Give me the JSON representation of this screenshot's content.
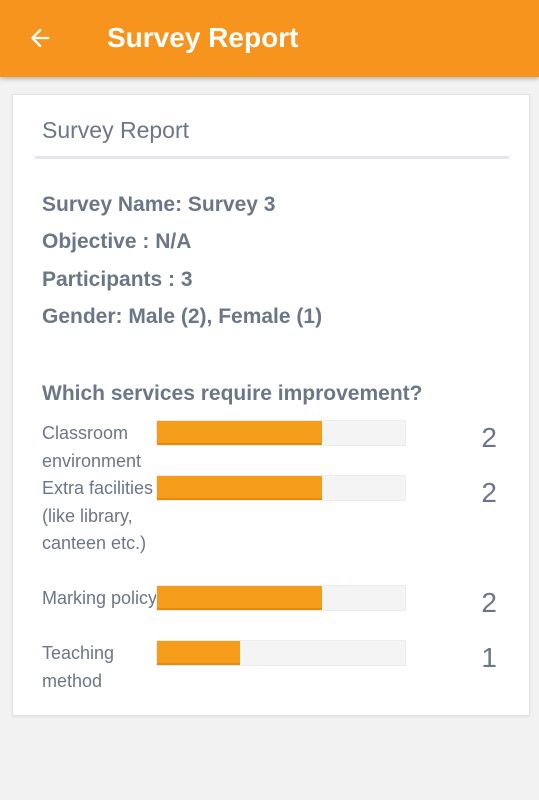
{
  "app_bar": {
    "title": "Survey Report",
    "background_color": "#f7941d",
    "back_icon": "arrow-left-icon"
  },
  "card": {
    "title": "Survey Report",
    "info": {
      "survey_name": "Survey Name: Survey 3",
      "objective": "Objective : N/A",
      "participants": "Participants : 3",
      "gender": "Gender: Male (2), Female (1)"
    },
    "question": "Which services require improvement?",
    "bar_color": "#f59d1a",
    "max_value": 3,
    "responses": [
      {
        "label": "Classroom environment",
        "count": "2",
        "value": 2
      },
      {
        "label": "Extra facilities (like library, canteen etc.)",
        "count": "2",
        "value": 2
      },
      {
        "label": "Marking policy",
        "count": "2",
        "value": 2
      },
      {
        "label": "Teaching method",
        "count": "1",
        "value": 1
      }
    ]
  }
}
